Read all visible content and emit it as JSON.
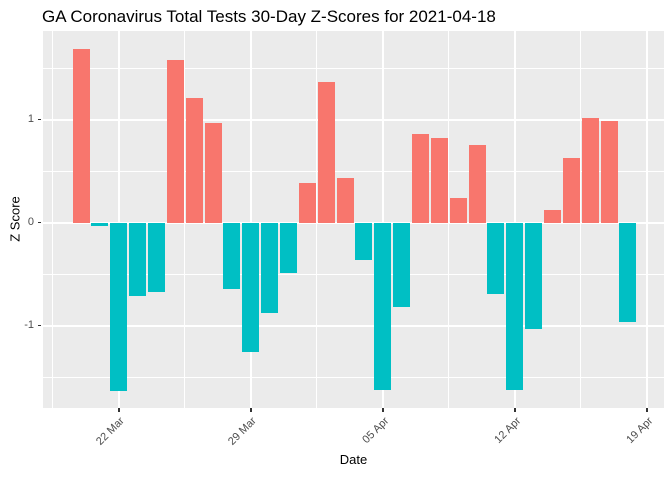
{
  "window": {
    "title": "GA Coronavirus Total Tests 30-Day Z-Scores for 2021-04-18"
  },
  "chart_data": {
    "type": "bar",
    "title": "GA Coronavirus Total Tests 30-Day Z-Scores for 2021-04-18",
    "xlabel": "Date",
    "ylabel": "Z Score",
    "legend": "none",
    "grid": "on",
    "ylim": [
      -1.8,
      1.86
    ],
    "categories": [
      "2021-03-20",
      "2021-03-21",
      "2021-03-22",
      "2021-03-23",
      "2021-03-24",
      "2021-03-25",
      "2021-03-26",
      "2021-03-27",
      "2021-03-28",
      "2021-03-29",
      "2021-03-30",
      "2021-03-31",
      "2021-04-01",
      "2021-04-02",
      "2021-04-03",
      "2021-04-04",
      "2021-04-05",
      "2021-04-06",
      "2021-04-07",
      "2021-04-08",
      "2021-04-09",
      "2021-04-10",
      "2021-04-11",
      "2021-04-12",
      "2021-04-13",
      "2021-04-14",
      "2021-04-15",
      "2021-04-16",
      "2021-04-17",
      "2021-04-18"
    ],
    "values": [
      1.69,
      -0.03,
      -1.63,
      -0.71,
      -0.67,
      1.58,
      1.21,
      0.97,
      -0.64,
      -1.26,
      -0.88,
      -0.49,
      0.39,
      1.37,
      0.43,
      -0.36,
      -1.62,
      -0.82,
      0.86,
      0.82,
      0.24,
      0.75,
      -0.69,
      -1.62,
      -1.03,
      0.12,
      0.63,
      1.02,
      0.99,
      -0.96
    ],
    "x_ticks": [
      {
        "day_index": 2,
        "label": "22 Mar"
      },
      {
        "day_index": 9,
        "label": "29 Mar"
      },
      {
        "day_index": 16,
        "label": "05 Apr"
      },
      {
        "day_index": 23,
        "label": "12 Apr"
      },
      {
        "day_index": 30,
        "label": "19 Apr"
      }
    ],
    "x_minor_day_indices": [
      -1.5,
      5.5,
      12.5,
      19.5,
      26.5
    ],
    "y_ticks": [
      {
        "z": 1,
        "label": "1"
      },
      {
        "z": 0,
        "label": "0"
      },
      {
        "z": -1,
        "label": "-1"
      }
    ],
    "y_minor": [
      1.5,
      0.5,
      -0.5,
      -1.5
    ],
    "colors": {
      "positive_bar": "#F8766D",
      "negative_bar": "#00BFC4",
      "panel_background": "#EBEBEB",
      "grid": "#FFFFFF",
      "axis_text": "#4D4D4D",
      "tick_mark": "#333333",
      "title_text": "#000000"
    }
  }
}
